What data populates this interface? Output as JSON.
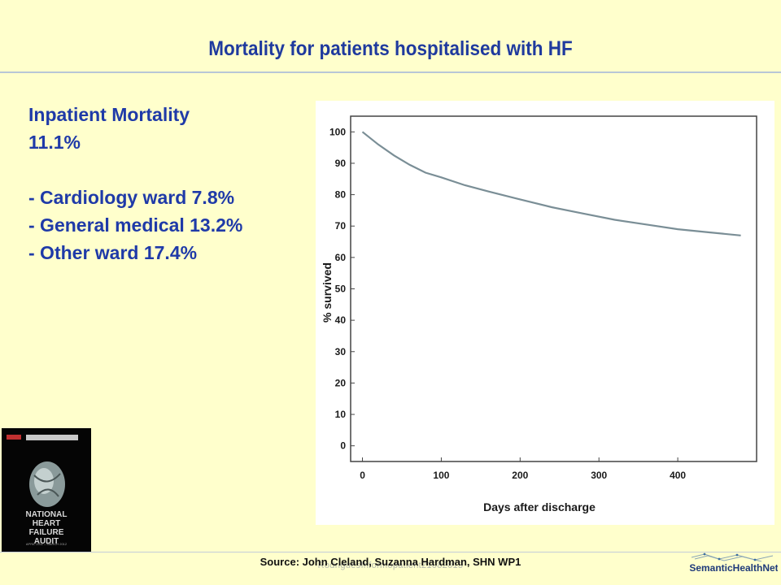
{
  "slide": {
    "title": "Mortality for patients hospitalised with HF",
    "stats": [
      "Inpatient Mortality",
      "11.1%",
      "- Cardiology ward 7.8%",
      "- General medical 13.2%",
      "- Other ward 17.4%"
    ],
    "source": "Source: John Cleland, Suzanna Hardman, SHN WP1",
    "watermark": "RodriguesInformopatient21082013",
    "brand": "SemanticHealthNet",
    "cover": {
      "lines": [
        "NATIONAL",
        "HEART",
        "FAILURE",
        "AUDIT"
      ],
      "date": "APRIL 2011 – MARCH 2012"
    }
  },
  "chart_data": {
    "type": "line",
    "xlabel": "Days after discharge",
    "ylabel": "% survived",
    "xlim": [
      -15,
      500
    ],
    "ylim": [
      -5,
      105
    ],
    "xticks": [
      0,
      100,
      200,
      300,
      400
    ],
    "yticks": [
      0,
      10,
      20,
      30,
      40,
      50,
      60,
      70,
      80,
      90,
      100
    ],
    "grid": false,
    "colors": {
      "line": "#7a8e96",
      "frame": "#444444",
      "text": "#1a1a1a"
    },
    "series": [
      {
        "x": [
          0,
          20,
          40,
          60,
          80,
          100,
          130,
          160,
          200,
          240,
          280,
          320,
          360,
          400,
          440,
          480
        ],
        "y": [
          100,
          96,
          92.5,
          89.5,
          87,
          85.5,
          83,
          81,
          78.5,
          76,
          74,
          72,
          70.5,
          69,
          68,
          67
        ]
      }
    ]
  }
}
